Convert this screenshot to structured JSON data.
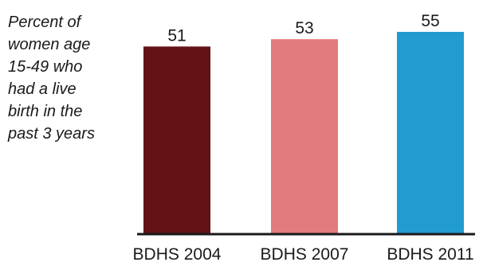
{
  "chart_data": {
    "type": "bar",
    "side_note": "Percent of\nwomen age\n15-49 who\nhad a live\nbirth in the\npast 3 years",
    "categories": [
      "BDHS 2004",
      "BDHS 2007",
      "BDHS 2011"
    ],
    "values": [
      51,
      53,
      55
    ],
    "data_labels": [
      "51",
      "53",
      "55"
    ],
    "colors": [
      "#651216",
      "#e27b7b",
      "#229bd0"
    ],
    "axis_color": "#1a1a1a",
    "ylim": [
      0,
      55
    ],
    "grid": false,
    "legend": "none"
  }
}
